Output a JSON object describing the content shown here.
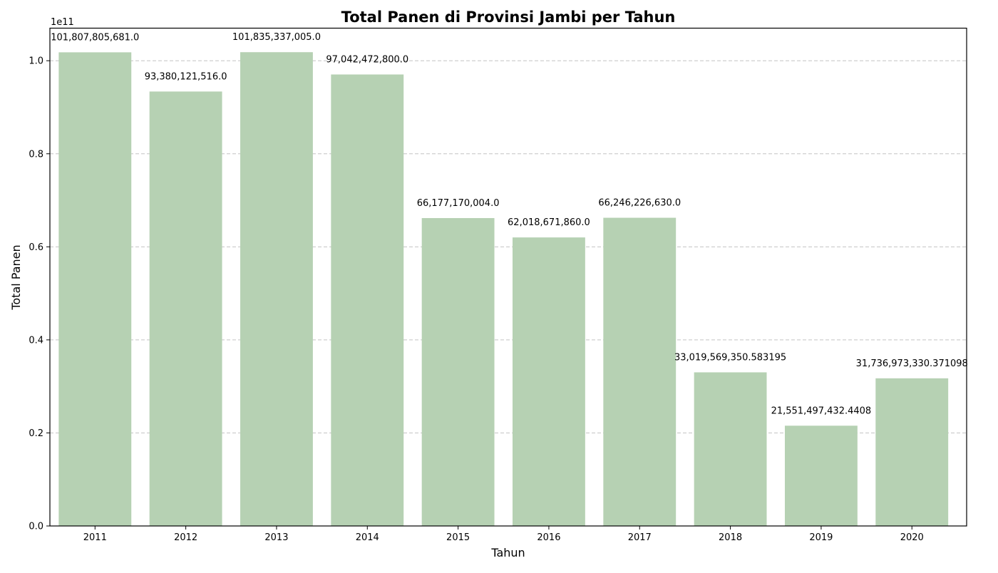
{
  "chart_data": {
    "type": "bar",
    "title": "Total Panen di Provinsi Jambi per Tahun",
    "xlabel": "Tahun",
    "ylabel": "Total Panen",
    "y_offset_label": "1e11",
    "y_scale": 100000000000,
    "categories": [
      "2011",
      "2012",
      "2013",
      "2014",
      "2015",
      "2016",
      "2017",
      "2018",
      "2019",
      "2020"
    ],
    "values": [
      101807805681.0,
      93380121516.0,
      101835337005.0,
      97042472800.0,
      66177170004.0,
      62018671860.0,
      66246226630.0,
      33019569350.583195,
      21551497432.4408,
      31736973330.371098
    ],
    "data_labels": [
      "101,807,805,681.0",
      "93,380,121,516.0",
      "101,835,337,005.0",
      "97,042,472,800.0",
      "66,177,170,004.0",
      "62,018,671,860.0",
      "66,246,226,630.0",
      "33,019,569,350.583195",
      "21,551,497,432.4408",
      "31,736,973,330.371098"
    ],
    "ylim": [
      0,
      1.07
    ],
    "yticks": [
      0.0,
      0.2,
      0.4,
      0.6,
      0.8,
      1.0
    ],
    "ytick_labels": [
      "0.0",
      "0.2",
      "0.4",
      "0.6",
      "0.8",
      "1.0"
    ],
    "grid": "horizontal dashed",
    "bar_color": "#b6d1b3",
    "grid_color": "#c4c4c4"
  }
}
